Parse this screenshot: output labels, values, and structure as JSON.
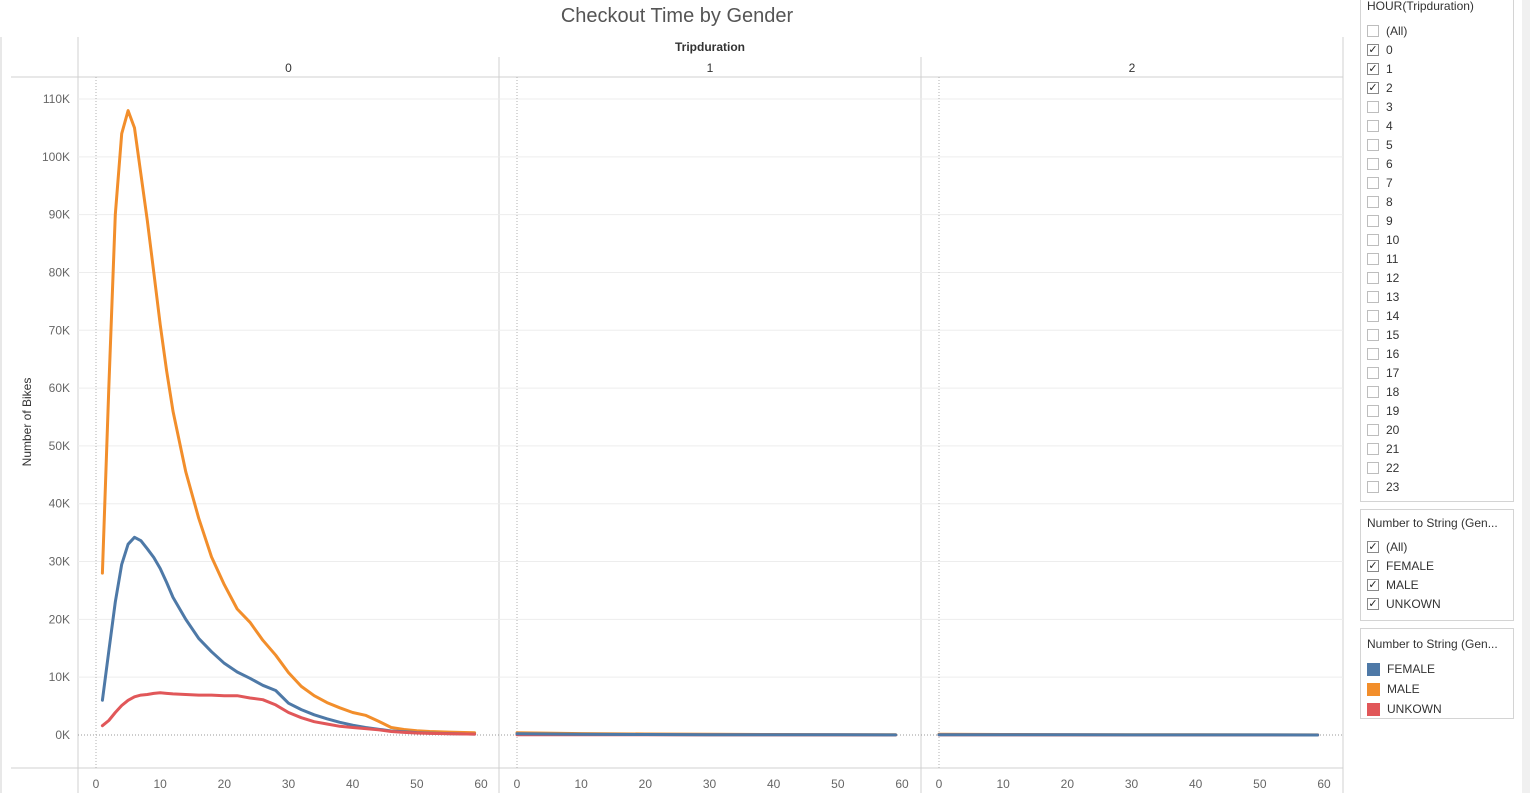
{
  "chart_data": {
    "type": "line",
    "title": "Checkout Time by Gender",
    "ylabel": "Number of Bikes",
    "column_header": "Tripduration",
    "ylim": [
      0,
      110000
    ],
    "y_ticks": [
      0,
      10000,
      20000,
      30000,
      40000,
      50000,
      60000,
      70000,
      80000,
      90000,
      100000,
      110000
    ],
    "y_tick_labels": [
      "0K",
      "10K",
      "20K",
      "30K",
      "40K",
      "50K",
      "60K",
      "70K",
      "80K",
      "90K",
      "100K",
      "110K"
    ],
    "xlim": [
      -3,
      62
    ],
    "x_ticks": [
      0,
      10,
      20,
      30,
      40,
      50,
      60
    ],
    "x_tick_labels": [
      "0",
      "10",
      "20",
      "30",
      "40",
      "50",
      "60"
    ],
    "grid": true,
    "legend_position": "right",
    "panes": [
      {
        "label": "0",
        "series": [
          {
            "name": "MALE",
            "color": "#f28e2b",
            "x": [
              1,
              2,
              3,
              4,
              5,
              6,
              7,
              8,
              9,
              10,
              11,
              12,
              14,
              16,
              18,
              20,
              22,
              24,
              26,
              28,
              30,
              32,
              34,
              36,
              38,
              40,
              42,
              44,
              46,
              48,
              50,
              52,
              55,
              59
            ],
            "y": [
              28000,
              60000,
              90000,
              104000,
              108000,
              105000,
              97000,
              89000,
              80000,
              71000,
              63000,
              56000,
              45500,
              37500,
              30800,
              26000,
              21800,
              19500,
              16400,
              13800,
              10800,
              8400,
              6800,
              5600,
              4700,
              3900,
              3400,
              2400,
              1300,
              950,
              750,
              600,
              500,
              400
            ]
          },
          {
            "name": "FEMALE",
            "color": "#4e79a7",
            "x": [
              1,
              2,
              3,
              4,
              5,
              6,
              7,
              8,
              9,
              10,
              11,
              12,
              14,
              16,
              18,
              20,
              22,
              24,
              26,
              28,
              30,
              32,
              34,
              36,
              38,
              40,
              42,
              44,
              46,
              48,
              50,
              52,
              55,
              59
            ],
            "y": [
              6000,
              14500,
              23000,
              29500,
              33000,
              34200,
              33600,
              32200,
              30700,
              28800,
              26400,
              23800,
              20000,
              16700,
              14400,
              12400,
              10900,
              9800,
              8600,
              7700,
              5500,
              4400,
              3500,
              2800,
              2200,
              1700,
              1300,
              1000,
              700,
              550,
              420,
              320,
              250,
              150
            ]
          },
          {
            "name": "UNKOWN",
            "color": "#e15759",
            "x": [
              1,
              2,
              3,
              4,
              5,
              6,
              7,
              8,
              9,
              10,
              11,
              12,
              14,
              16,
              18,
              20,
              22,
              24,
              26,
              28,
              30,
              32,
              34,
              36,
              38,
              40,
              42,
              44,
              46,
              48,
              50,
              52,
              55,
              59
            ],
            "y": [
              1600,
              2500,
              3900,
              5100,
              6000,
              6600,
              6900,
              7000,
              7200,
              7300,
              7200,
              7100,
              7000,
              6900,
              6900,
              6800,
              6800,
              6400,
              6100,
              5200,
              3900,
              3000,
              2300,
              1900,
              1500,
              1300,
              1100,
              900,
              600,
              450,
              350,
              280,
              200,
              150
            ]
          }
        ]
      },
      {
        "label": "1",
        "series": [
          {
            "name": "MALE",
            "color": "#f28e2b",
            "x": [
              0,
              10,
              20,
              30,
              40,
              50,
              59
            ],
            "y": [
              400,
              250,
              180,
              120,
              90,
              60,
              40
            ]
          },
          {
            "name": "UNKOWN",
            "color": "#e15759",
            "x": [
              0,
              10,
              20,
              30,
              40,
              50,
              59
            ],
            "y": [
              50,
              40,
              30,
              20,
              15,
              10,
              8
            ]
          },
          {
            "name": "FEMALE",
            "color": "#4e79a7",
            "x": [
              0,
              10,
              20,
              30,
              40,
              50,
              59
            ],
            "y": [
              200,
              130,
              90,
              60,
              40,
              30,
              20
            ]
          }
        ]
      },
      {
        "label": "2",
        "series": [
          {
            "name": "MALE",
            "color": "#f28e2b",
            "x": [
              0,
              10,
              20,
              30,
              40,
              50,
              59
            ],
            "y": [
              120,
              80,
              60,
              40,
              30,
              20,
              15
            ]
          },
          {
            "name": "UNKOWN",
            "color": "#e15759",
            "x": [
              0,
              10,
              20,
              30,
              40,
              50,
              59
            ],
            "y": [
              20,
              15,
              10,
              8,
              6,
              5,
              4
            ]
          },
          {
            "name": "FEMALE",
            "color": "#4e79a7",
            "x": [
              0,
              10,
              20,
              30,
              40,
              50,
              59
            ],
            "y": [
              60,
              40,
              30,
              20,
              15,
              10,
              8
            ]
          }
        ]
      }
    ]
  },
  "hour_filter": {
    "title": "HOUR(Tripduration)",
    "items": [
      {
        "label": "(All)",
        "checked": false
      },
      {
        "label": "0",
        "checked": true
      },
      {
        "label": "1",
        "checked": true
      },
      {
        "label": "2",
        "checked": true
      },
      {
        "label": "3",
        "checked": false
      },
      {
        "label": "4",
        "checked": false
      },
      {
        "label": "5",
        "checked": false
      },
      {
        "label": "6",
        "checked": false
      },
      {
        "label": "7",
        "checked": false
      },
      {
        "label": "8",
        "checked": false
      },
      {
        "label": "9",
        "checked": false
      },
      {
        "label": "10",
        "checked": false
      },
      {
        "label": "11",
        "checked": false
      },
      {
        "label": "12",
        "checked": false
      },
      {
        "label": "13",
        "checked": false
      },
      {
        "label": "14",
        "checked": false
      },
      {
        "label": "15",
        "checked": false
      },
      {
        "label": "16",
        "checked": false
      },
      {
        "label": "17",
        "checked": false
      },
      {
        "label": "18",
        "checked": false
      },
      {
        "label": "19",
        "checked": false
      },
      {
        "label": "20",
        "checked": false
      },
      {
        "label": "21",
        "checked": false
      },
      {
        "label": "22",
        "checked": false
      },
      {
        "label": "23",
        "checked": false
      }
    ]
  },
  "gender_filter": {
    "title": "Number to String (Gen...",
    "items": [
      {
        "label": "(All)",
        "checked": true
      },
      {
        "label": "FEMALE",
        "checked": true
      },
      {
        "label": "MALE",
        "checked": true
      },
      {
        "label": "UNKOWN",
        "checked": true
      }
    ]
  },
  "legend": {
    "title": "Number to String (Gen...",
    "items": [
      {
        "label": "FEMALE",
        "color": "#4e79a7"
      },
      {
        "label": "MALE",
        "color": "#f28e2b"
      },
      {
        "label": "UNKOWN",
        "color": "#e15759"
      }
    ]
  }
}
